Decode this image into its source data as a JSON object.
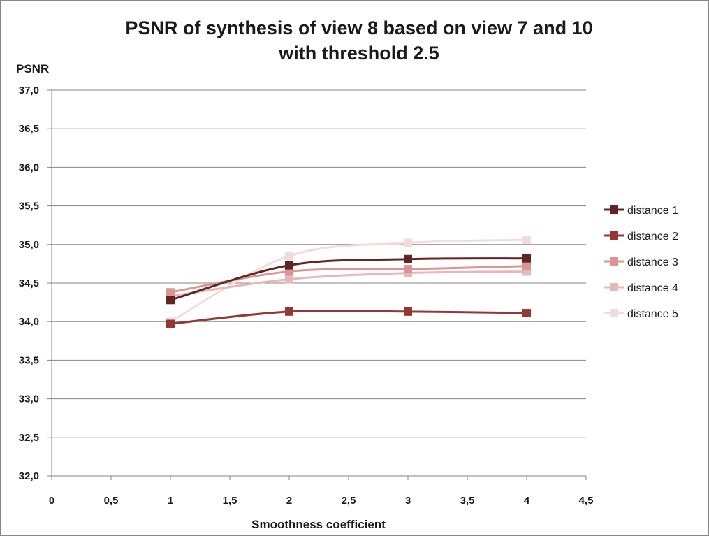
{
  "chart_data": {
    "type": "line",
    "title_lines": [
      "PSNR of synthesis of view 8 based on view 7 and 10",
      "with threshold 2.5"
    ],
    "xlabel": "Smoothness coefficient",
    "ylabel": "PSNR",
    "xlim": [
      0,
      4.5
    ],
    "ylim": [
      32.0,
      37.0
    ],
    "x_ticks": [
      "0",
      "0,5",
      "1",
      "1,5",
      "2",
      "2,5",
      "3",
      "3,5",
      "4",
      "4,5"
    ],
    "y_ticks": [
      "32,0",
      "32,5",
      "33,0",
      "33,5",
      "34,0",
      "34,5",
      "35,0",
      "35,5",
      "36,0",
      "36,5",
      "37,0"
    ],
    "x_tick_values": [
      0,
      0.5,
      1,
      1.5,
      2,
      2.5,
      3,
      3.5,
      4,
      4.5
    ],
    "y_tick_values": [
      32.0,
      32.5,
      33.0,
      33.5,
      34.0,
      34.5,
      35.0,
      35.5,
      36.0,
      36.5,
      37.0
    ],
    "grid": "horizontal",
    "legend_position": "right",
    "x": [
      1,
      2,
      3,
      4
    ],
    "series": [
      {
        "name": "distance 1",
        "color": "#632523",
        "values": [
          34.28,
          34.73,
          34.81,
          34.82
        ]
      },
      {
        "name": "distance 2",
        "color": "#953735",
        "values": [
          33.97,
          34.13,
          34.13,
          34.11
        ]
      },
      {
        "name": "distance 3",
        "color": "#d99694",
        "values": [
          34.38,
          34.65,
          34.68,
          34.72
        ]
      },
      {
        "name": "distance 4",
        "color": "#e6b9b8",
        "values": [
          34.33,
          34.55,
          34.63,
          34.65
        ]
      },
      {
        "name": "distance 5",
        "color": "#f2dcdb",
        "values": [
          34.0,
          34.85,
          35.02,
          35.06
        ]
      }
    ]
  }
}
